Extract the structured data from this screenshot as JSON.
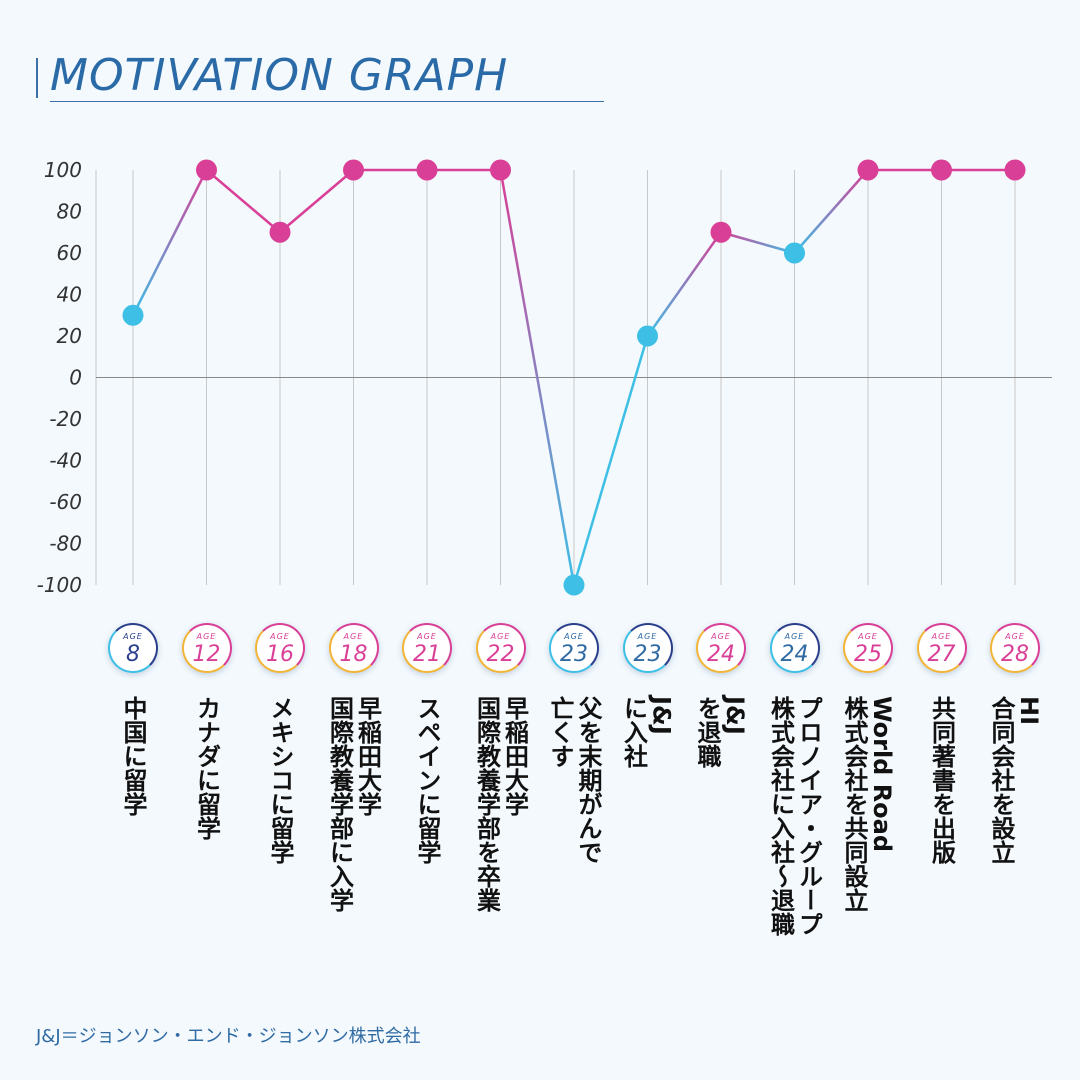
{
  "title": "MOTIVATION GRAPH",
  "footnote": "J&J＝ジョンソン・エンド・ジョンソン株式会社",
  "age_label": "AGE",
  "colors": {
    "pink": "#d93f96",
    "blue": "#3ebfe6",
    "navy": "#2b3f8c",
    "gold": "#f2b538",
    "grid": "#c8c8c8",
    "axis": "#888888"
  },
  "chart_data": {
    "type": "line",
    "title": "MOTIVATION GRAPH",
    "ylim": [
      -100,
      100
    ],
    "yticks": [
      "100",
      "80",
      "60",
      "40",
      "20",
      "0",
      "-20",
      "-40",
      "-60",
      "-80",
      "-100"
    ],
    "grid": "vertical",
    "ages": [
      "8",
      "12",
      "16",
      "18",
      "21",
      "22",
      "23",
      "23",
      "24",
      "24",
      "25",
      "27",
      "28"
    ],
    "events": [
      "中国に留学",
      "カナダに留学",
      "メキシコに留学",
      "早稲田大学\n国際教養学部に入学",
      "スペインに留学",
      "早稲田大学\n国際教養学部を卒業",
      "父を末期がんで\n亡くす",
      "J&J\nに入社",
      "J&J\nを退職",
      "プロノイア・グループ\n株式会社に入社〜退職",
      "World Road\n株式会社を共同設立",
      "共同著書を出版",
      "HI\n合同会社を設立"
    ],
    "values": [
      30,
      100,
      70,
      100,
      100,
      100,
      -100,
      20,
      70,
      60,
      100,
      100,
      100
    ]
  }
}
